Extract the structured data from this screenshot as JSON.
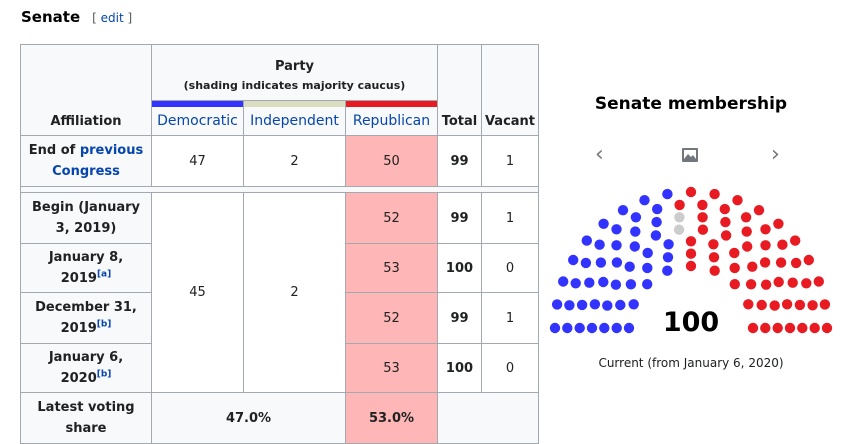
{
  "heading": {
    "title": "Senate",
    "edit_open": "[",
    "edit_label": "edit",
    "edit_close": "]"
  },
  "table": {
    "party_header": "Party",
    "party_note": "(shading indicates majority caucus)",
    "affiliation_header": "Affiliation",
    "parties": [
      "Democratic",
      "Independent",
      "Republican"
    ],
    "total_header": "Total",
    "vacant_header": "Vacant",
    "party_colors": {
      "democratic": "#3333ff",
      "independent": "#dcdcc0",
      "republican": "#e81b23",
      "majority_shade": "#ffb6b6"
    },
    "end_prev": {
      "label_prefix": "End of ",
      "label_link": "previous Congress",
      "dem": "47",
      "ind": "2",
      "rep": "50",
      "total": "99",
      "vacant": "1"
    },
    "begin": {
      "label": "Begin (January 3, 2019)",
      "rep": "52",
      "total": "99",
      "vacant": "1"
    },
    "jan8": {
      "label": "January 8, 2019",
      "note": "[a]",
      "rep": "53",
      "total": "100",
      "vacant": "0"
    },
    "dec31": {
      "label": "December 31, 2019",
      "note": "[b]",
      "rep": "52",
      "total": "99",
      "vacant": "1"
    },
    "jan6": {
      "label": "January 6, 2020",
      "note": "[b]",
      "rep": "53",
      "total": "100",
      "vacant": "0"
    },
    "merged": {
      "dem": "45",
      "ind": "2"
    },
    "share": {
      "label": "Latest voting share",
      "dem_ind": "47.0%",
      "rep": "53.0%"
    }
  },
  "chart": {
    "title": "Senate membership",
    "total": "100",
    "caption": "Current (from January 6, 2020)",
    "seats": {
      "democratic": 45,
      "independent": 2,
      "republican": 53
    }
  }
}
